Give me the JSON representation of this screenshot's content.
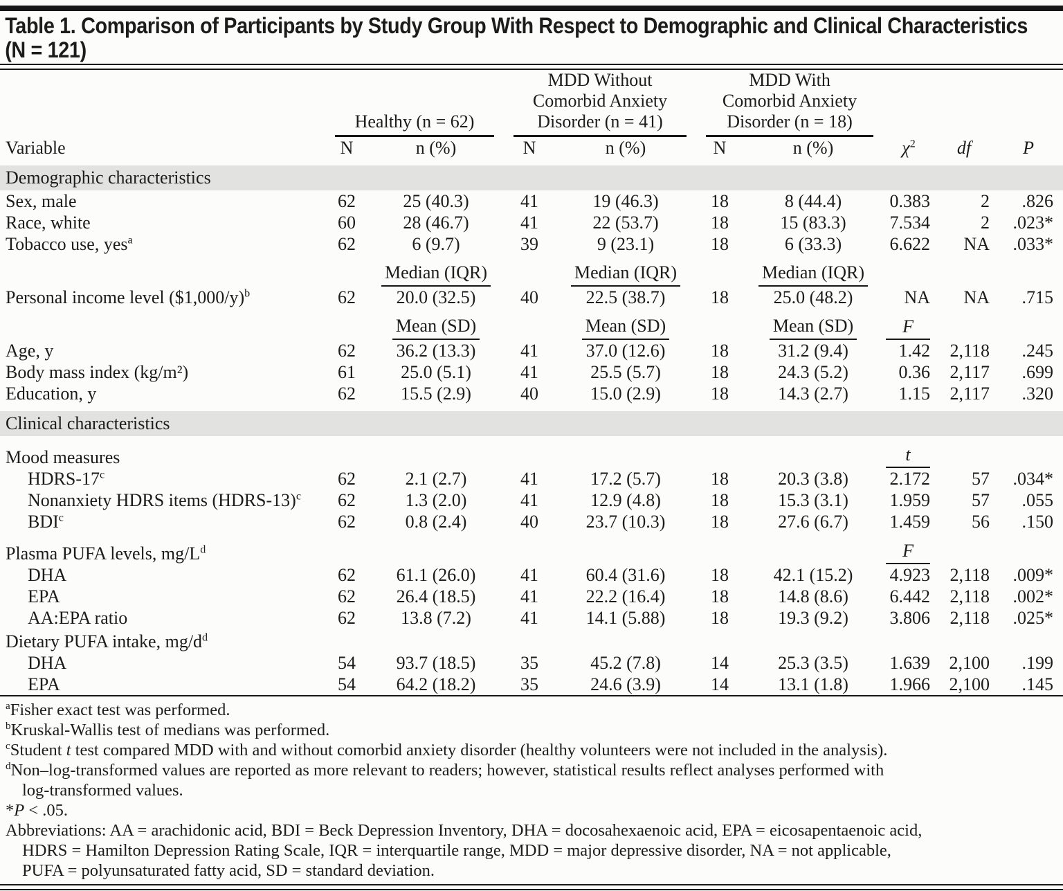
{
  "title": "Table 1. Comparison of Participants by Study Group With Respect to Demographic and Clinical Characteristics\n(N = 121)",
  "header": {
    "variable": "Variable",
    "groups": [
      {
        "label": "Healthy (n = 62)",
        "n": "N",
        "npct": "n (%)"
      },
      {
        "label": "MDD Without\nComorbid Anxiety\nDisorder (n = 41)",
        "n": "N",
        "npct": "n (%)"
      },
      {
        "label": "MDD With\nComorbid Anxiety\nDisorder (n = 18)",
        "n": "N",
        "npct": "n (%)"
      }
    ],
    "chi": "χ",
    "chi_sup": "2",
    "df": "df",
    "p": "P"
  },
  "rows": [
    {
      "type": "section",
      "label": "Demographic characteristics"
    },
    {
      "type": "data",
      "label": "Sex, male",
      "values": [
        "62",
        "25 (40.3)",
        "41",
        "19 (46.3)",
        "18",
        "8 (44.4)",
        "0.383",
        "2",
        ".826"
      ]
    },
    {
      "type": "data",
      "label": "Race, white",
      "values": [
        "60",
        "28 (46.7)",
        "41",
        "22 (53.7)",
        "18",
        "15 (83.3)",
        "7.534",
        "2",
        ".023*"
      ]
    },
    {
      "type": "data",
      "label": "Tobacco use, yes",
      "sup": "a",
      "values": [
        "62",
        "6 (9.7)",
        "39",
        "9 (23.1)",
        "18",
        "6 (33.3)",
        "6.622",
        "NA",
        ".033*"
      ]
    },
    {
      "type": "subheader",
      "col_label": "Median (IQR)",
      "stat": ""
    },
    {
      "type": "data",
      "label": "Personal income level ($1,000/y)",
      "sup": "b",
      "values": [
        "62",
        "20.0 (32.5)",
        "40",
        "22.5 (38.7)",
        "18",
        "25.0 (48.2)",
        "NA",
        "NA",
        ".715"
      ]
    },
    {
      "type": "subheader",
      "col_label": "Mean (SD)",
      "stat": "F"
    },
    {
      "type": "data",
      "label": "Age, y",
      "values": [
        "62",
        "36.2 (13.3)",
        "41",
        "37.0 (12.6)",
        "18",
        "31.2 (9.4)",
        "1.42",
        "2,118",
        ".245"
      ]
    },
    {
      "type": "data",
      "label": "Body mass index (kg/m²)",
      "values": [
        "61",
        "25.0 (5.1)",
        "41",
        "25.5 (5.7)",
        "18",
        "24.3 (5.2)",
        "0.36",
        "2,117",
        ".699"
      ]
    },
    {
      "type": "data",
      "label": "Education, y",
      "values": [
        "62",
        "15.5 (2.9)",
        "40",
        "15.0 (2.9)",
        "18",
        "14.3 (2.7)",
        "1.15",
        "2,117",
        ".320"
      ]
    },
    {
      "type": "section",
      "label": "Clinical characteristics",
      "extra_gap": true
    },
    {
      "type": "group",
      "label": "Mood measures",
      "stat": "t"
    },
    {
      "type": "data",
      "indent": true,
      "label": "HDRS-17",
      "sup": "c",
      "values": [
        "62",
        "2.1 (2.7)",
        "41",
        "17.2 (5.7)",
        "18",
        "20.3 (3.8)",
        "2.172",
        "57",
        ".034*"
      ]
    },
    {
      "type": "data",
      "indent": true,
      "label": "Nonanxiety HDRS items (HDRS-13)",
      "sup": "c",
      "values": [
        "62",
        "1.3 (2.0)",
        "41",
        "12.9 (4.8)",
        "18",
        "15.3 (3.1)",
        "1.959",
        "57",
        ".055"
      ]
    },
    {
      "type": "data",
      "indent": true,
      "label": "BDI",
      "sup": "c",
      "values": [
        "62",
        "0.8 (2.4)",
        "40",
        "23.7 (10.3)",
        "18",
        "27.6 (6.7)",
        "1.459",
        "56",
        ".150"
      ]
    },
    {
      "type": "group",
      "label": "Plasma PUFA levels, mg/L",
      "sup": "d",
      "stat": "F"
    },
    {
      "type": "data",
      "indent": true,
      "label": "DHA",
      "values": [
        "62",
        "61.1 (26.0)",
        "41",
        "60.4 (31.6)",
        "18",
        "42.1 (15.2)",
        "4.923",
        "2,118",
        ".009*"
      ]
    },
    {
      "type": "data",
      "indent": true,
      "label": "EPA",
      "values": [
        "62",
        "26.4 (18.5)",
        "41",
        "22.2 (16.4)",
        "18",
        "14.8 (8.6)",
        "6.442",
        "2,118",
        ".002*"
      ]
    },
    {
      "type": "data",
      "indent": true,
      "label": "AA:EPA ratio",
      "values": [
        "62",
        "13.8 (7.2)",
        "41",
        "14.1 (5.88)",
        "18",
        "19.3 (9.2)",
        "3.806",
        "2,118",
        ".025*"
      ]
    },
    {
      "type": "group",
      "label": "Dietary PUFA intake, mg/d",
      "sup": "d",
      "stat": ""
    },
    {
      "type": "data",
      "indent": true,
      "label": "DHA",
      "values": [
        "54",
        "93.7 (18.5)",
        "35",
        "45.2 (7.8)",
        "14",
        "25.3 (3.5)",
        "1.639",
        "2,100",
        ".199"
      ]
    },
    {
      "type": "data",
      "indent": true,
      "label": "EPA",
      "values": [
        "54",
        "64.2 (18.2)",
        "35",
        "24.6 (3.9)",
        "14",
        "13.1 (1.8)",
        "1.966",
        "2,100",
        ".145"
      ]
    }
  ],
  "footnotes": {
    "a": {
      "sup": "a",
      "text": "Fisher exact test was performed."
    },
    "b": {
      "sup": "b",
      "text": "Kruskal-Wallis test of medians was performed."
    },
    "c": {
      "sup": "c",
      "pre": "Student ",
      "italic": "t",
      "post": " test compared MDD with and without comorbid anxiety disorder (healthy volunteers were not included in the analysis)."
    },
    "d": {
      "sup": "d",
      "line1": "Non–log-transformed values are reported as more relevant to readers; however, statistical results reflect analyses performed with",
      "line2": "log-transformed values."
    },
    "star": {
      "pre": "*",
      "italic": "P",
      "post": " < .05."
    },
    "abbr": {
      "line1": "Abbreviations: AA = arachidonic acid, BDI = Beck Depression Inventory, DHA = docosahexaenoic acid, EPA = eicosapentaenoic acid,",
      "line2": "HDRS = Hamilton Depression Rating Scale, IQR = interquartile range, MDD = major depressive disorder, NA = not applicable,",
      "line3": "PUFA = polyunsaturated fatty acid, SD = standard deviation."
    }
  }
}
